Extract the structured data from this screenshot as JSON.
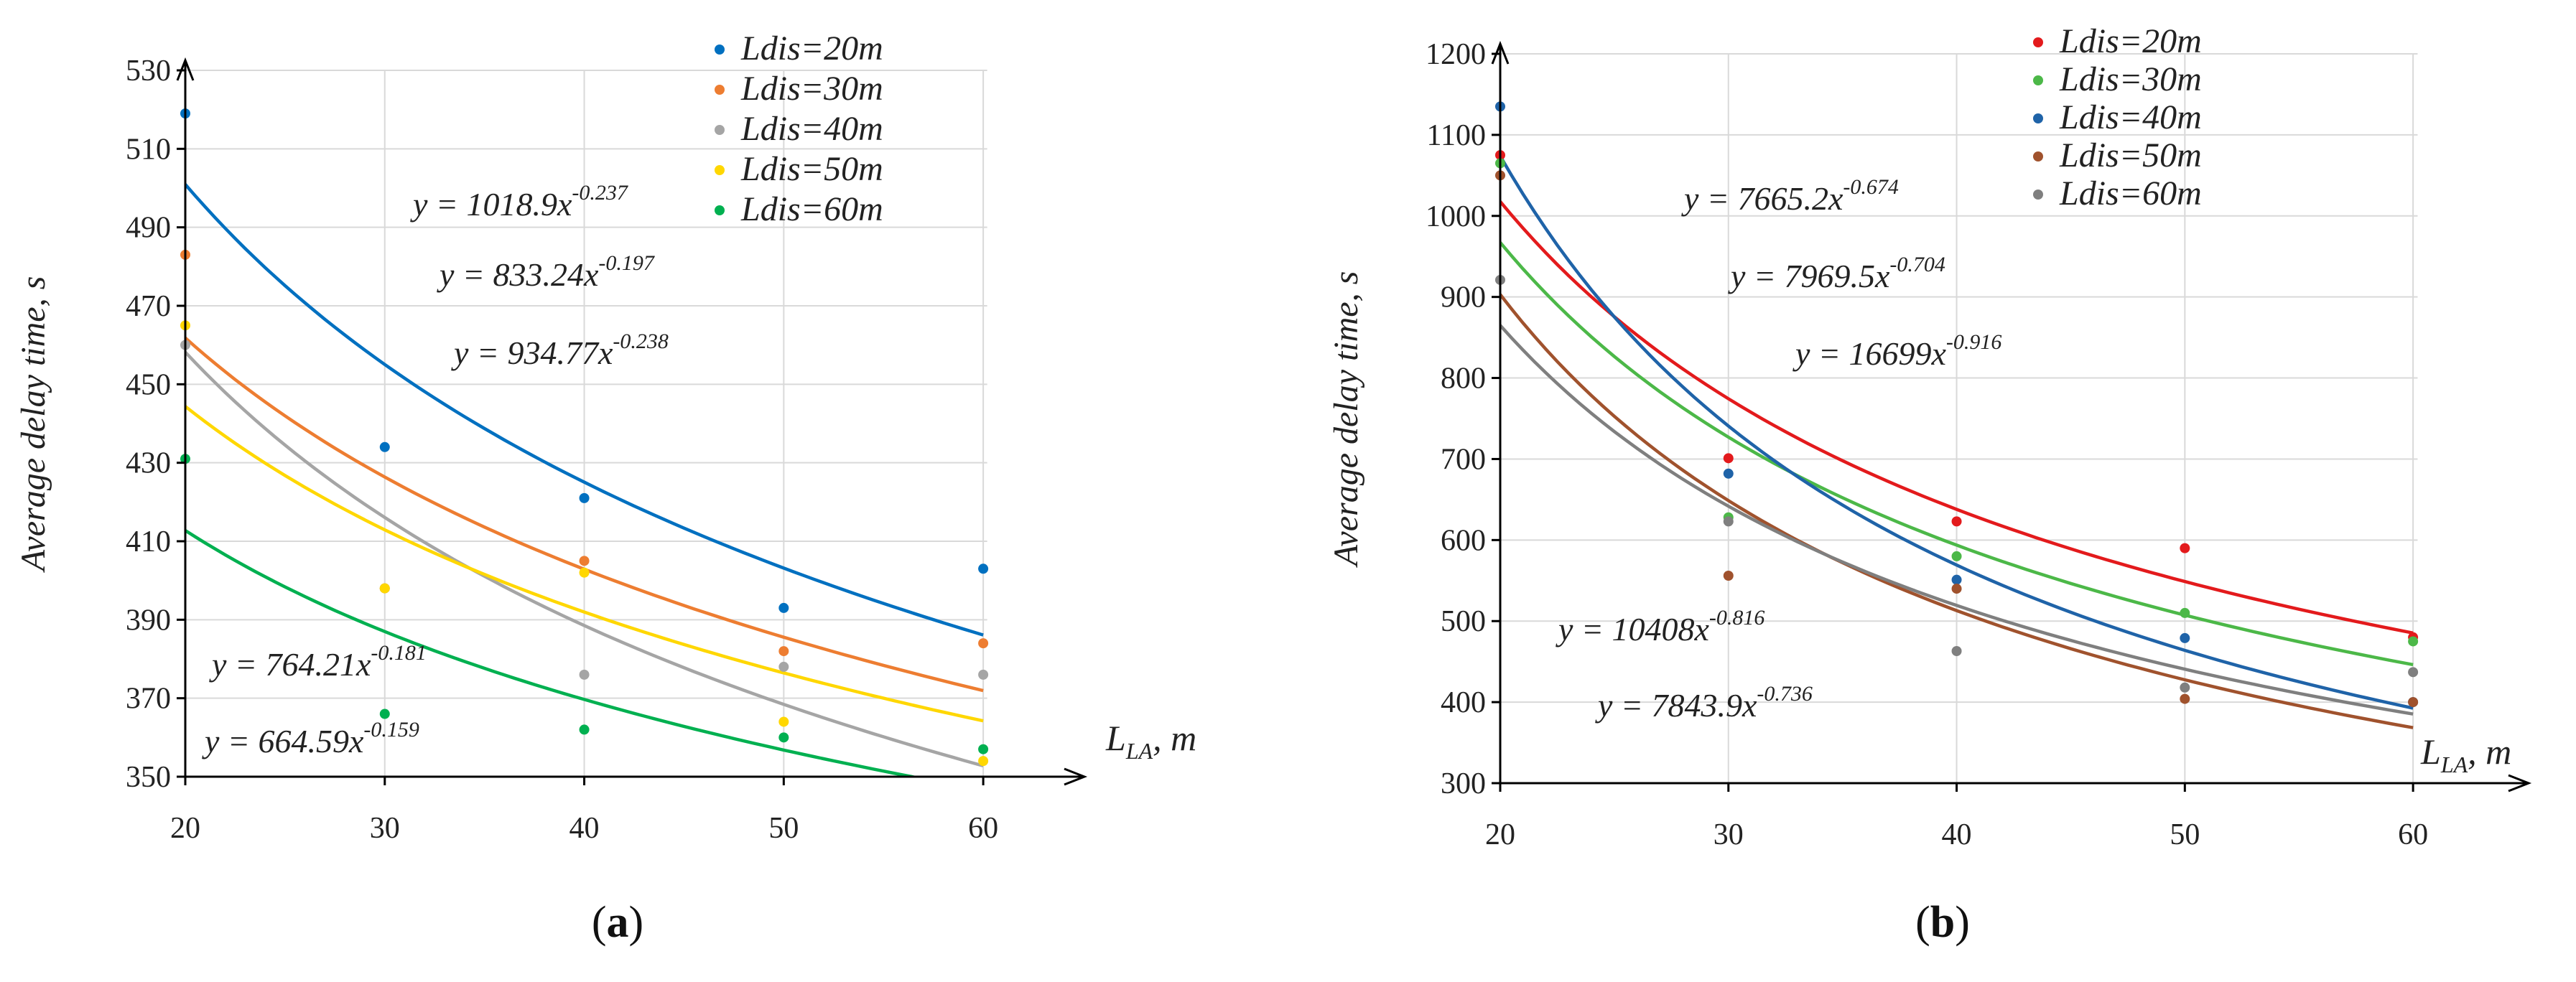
{
  "chart_data": [
    {
      "type": "scatter",
      "panel_label": "a",
      "ylabel": "Average delay time, s",
      "xlabel_main": "L",
      "xlabel_sub": "LA",
      "xlabel_unit": ", m",
      "xlim": [
        20,
        65
      ],
      "ylim": [
        350,
        530
      ],
      "x_ticks": [
        20,
        30,
        40,
        50,
        60
      ],
      "y_ticks": [
        350,
        370,
        390,
        410,
        430,
        450,
        470,
        490,
        510,
        530
      ],
      "grid": true,
      "legend_position": "top-right",
      "x": [
        20,
        30,
        40,
        50,
        60
      ],
      "series": [
        {
          "name": "Ldis=20m",
          "color": "#0070C0",
          "values": [
            519,
            434,
            421,
            393,
            403
          ],
          "fit": {
            "a": 1018.9,
            "b": -0.237
          }
        },
        {
          "name": "Ldis=30m",
          "color": "#ED7D31",
          "values": [
            483,
            398,
            405,
            382,
            384
          ],
          "fit": {
            "a": 833.24,
            "b": -0.197
          }
        },
        {
          "name": "Ldis=40m",
          "color": "#A5A5A5",
          "values": [
            460,
            398,
            376,
            378,
            376
          ],
          "fit": {
            "a": 934.77,
            "b": -0.238
          }
        },
        {
          "name": "Ldis=50m",
          "color": "#FFD700",
          "values": [
            465,
            398,
            402,
            364,
            354
          ],
          "fit": {
            "a": 764.21,
            "b": -0.181
          }
        },
        {
          "name": "Ldis=60m",
          "color": "#00B050",
          "values": [
            431,
            366,
            362,
            360,
            357
          ],
          "fit": {
            "a": 664.59,
            "b": -0.159
          }
        }
      ],
      "equations": [
        {
          "base": "y = 1018.9x",
          "exp": "-0.237"
        },
        {
          "base": "y = 833.24x",
          "exp": "-0.197"
        },
        {
          "base": "y = 934.77x",
          "exp": "-0.238"
        },
        {
          "base": "y = 764.21x",
          "exp": "-0.181"
        },
        {
          "base": "y = 664.59x",
          "exp": "-0.159"
        }
      ]
    },
    {
      "type": "scatter",
      "panel_label": "b",
      "ylabel": "Average delay time, s",
      "xlabel_main": "L",
      "xlabel_sub": "LA",
      "xlabel_unit": ", m",
      "xlim": [
        20,
        65
      ],
      "ylim": [
        300,
        1200
      ],
      "x_ticks": [
        20,
        30,
        40,
        50,
        60
      ],
      "y_ticks": [
        300,
        400,
        500,
        600,
        700,
        800,
        900,
        1000,
        1100,
        1200
      ],
      "grid": true,
      "legend_position": "top-right",
      "x": [
        20,
        30,
        40,
        50,
        60
      ],
      "series": [
        {
          "name": "Ldis=20m",
          "color": "#E31A1C",
          "values": [
            1075,
            701,
            623,
            590,
            480
          ],
          "fit": {
            "a": 7665.2,
            "b": -0.674
          }
        },
        {
          "name": "Ldis=30m",
          "color": "#4CB848",
          "values": [
            1065,
            628,
            580,
            510,
            475
          ],
          "fit": {
            "a": 7969.5,
            "b": -0.704
          }
        },
        {
          "name": "Ldis=40m",
          "color": "#1F63A8",
          "values": [
            1135,
            682,
            551,
            479,
            400
          ],
          "fit": {
            "a": 16699,
            "b": -0.916
          }
        },
        {
          "name": "Ldis=50m",
          "color": "#A0522D",
          "values": [
            1050,
            556,
            540,
            404,
            400
          ],
          "fit": {
            "a": 10408,
            "b": -0.816
          }
        },
        {
          "name": "Ldis=60m",
          "color": "#7F7F7F",
          "values": [
            921,
            623,
            463,
            418,
            437
          ],
          "fit": {
            "a": 7843.9,
            "b": -0.736
          }
        }
      ],
      "equations": [
        {
          "base": "y = 7665.2x",
          "exp": "-0.674"
        },
        {
          "base": "y = 7969.5x",
          "exp": "-0.704"
        },
        {
          "base": "y = 16699x",
          "exp": "-0.916"
        },
        {
          "base": "y = 10408x",
          "exp": "-0.816"
        },
        {
          "base": "y = 7843.9x",
          "exp": "-0.736"
        }
      ]
    }
  ]
}
